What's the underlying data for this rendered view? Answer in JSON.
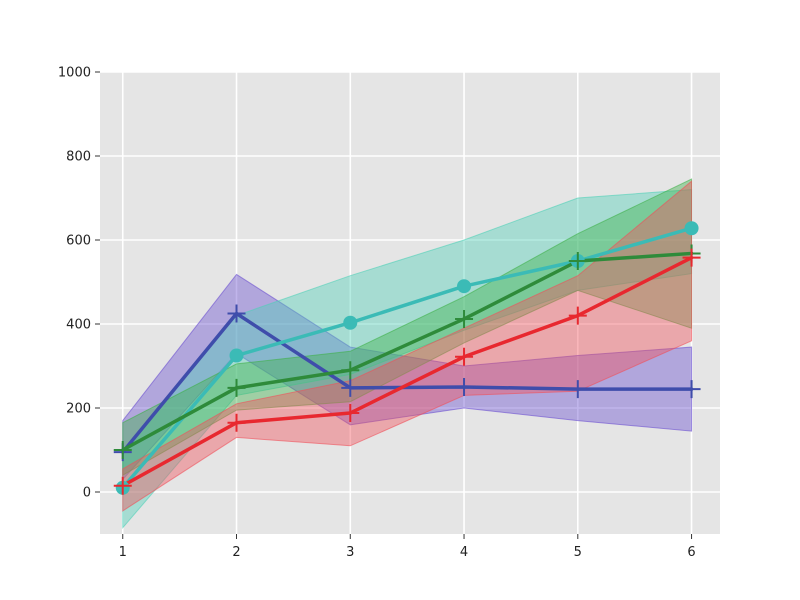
{
  "chart_data": {
    "type": "line",
    "title": "",
    "xlabel": "",
    "ylabel": "",
    "x": [
      1,
      2,
      3,
      4,
      5,
      6
    ],
    "xlim": [
      0.8,
      6.25
    ],
    "ylim": [
      -100,
      1000
    ],
    "x_ticks": [
      "1",
      "2",
      "3",
      "4",
      "5",
      "6"
    ],
    "y_ticks": [
      "0",
      "200",
      "400",
      "600",
      "800",
      "1000"
    ],
    "grid": true,
    "background": "#e5e5e5",
    "series": [
      {
        "color": "#3f4dab",
        "band_color": "#6a4fd0",
        "marker": "plus",
        "values": [
          95,
          425,
          248,
          250,
          245,
          245
        ],
        "lower": [
          30,
          330,
          160,
          200,
          170,
          145
        ],
        "upper": [
          170,
          518,
          345,
          300,
          325,
          345
        ]
      },
      {
        "color": "#3bbbb6",
        "band_color": "#4fd0b8",
        "marker": "circle",
        "values": [
          10,
          325,
          403,
          490,
          550,
          628
        ],
        "lower": [
          -85,
          230,
          280,
          385,
          480,
          520
        ],
        "upper": [
          100,
          420,
          515,
          600,
          700,
          720
        ]
      },
      {
        "color": "#2e8b3a",
        "band_color": "#3fb04a",
        "marker": "plus",
        "values": [
          100,
          248,
          290,
          412,
          550,
          568
        ],
        "lower": [
          40,
          195,
          215,
          355,
          480,
          390
        ],
        "upper": [
          165,
          305,
          335,
          465,
          615,
          745
        ]
      },
      {
        "color": "#e8282f",
        "band_color": "#f0505a",
        "marker": "plus",
        "values": [
          15,
          165,
          188,
          322,
          420,
          558
        ],
        "lower": [
          -45,
          130,
          110,
          230,
          240,
          360
        ],
        "upper": [
          55,
          210,
          265,
          390,
          515,
          740
        ]
      }
    ]
  }
}
